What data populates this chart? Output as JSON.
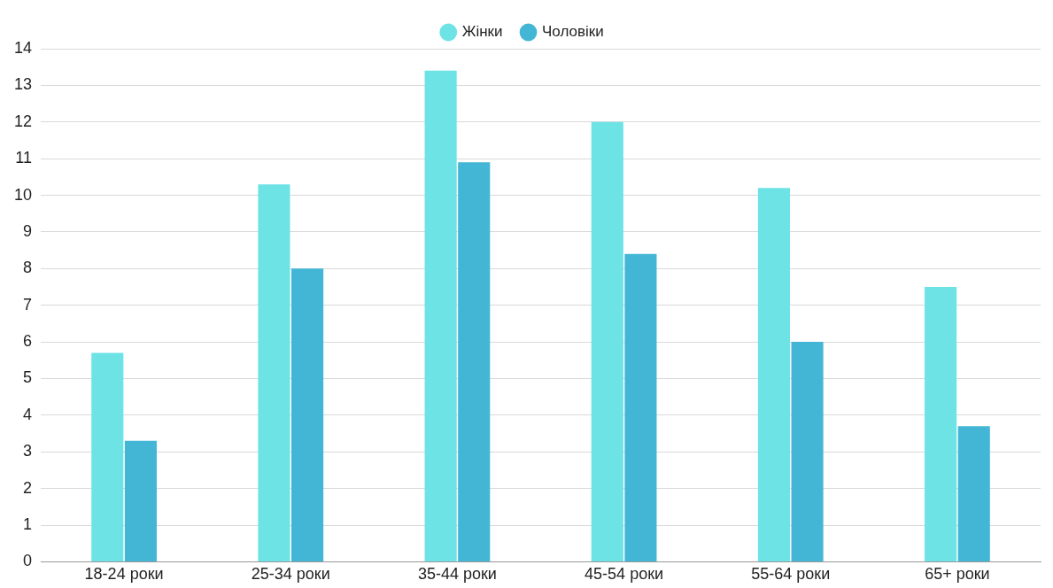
{
  "chart_data": {
    "type": "bar",
    "categories": [
      "18-24 роки",
      "25-34 роки",
      "35-44 роки",
      "45-54 роки",
      "55-64 роки",
      "65+ роки"
    ],
    "series": [
      {
        "name": "Жінки",
        "color": "#6de3e6",
        "values": [
          5.7,
          10.3,
          13.4,
          12.0,
          10.2,
          7.5
        ]
      },
      {
        "name": "Чоловіки",
        "color": "#43b6d6",
        "values": [
          3.3,
          8.0,
          10.9,
          8.4,
          6.0,
          3.7
        ]
      }
    ],
    "ylim": [
      0,
      14
    ],
    "yticks": [
      0,
      1,
      2,
      3,
      4,
      5,
      6,
      7,
      8,
      9,
      10,
      11,
      12,
      13,
      14
    ],
    "grid": "y",
    "legend": "top"
  }
}
